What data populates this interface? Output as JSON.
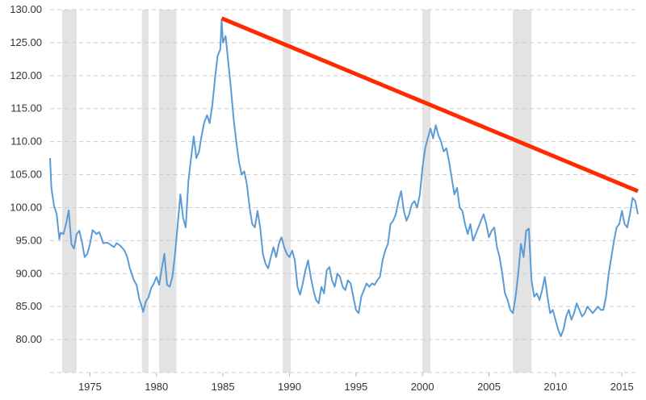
{
  "chart_data": {
    "type": "line",
    "title": "",
    "xlabel": "",
    "ylabel": "",
    "xlim": [
      1972.0,
      2016.2
    ],
    "ylim": [
      75,
      130
    ],
    "grid": {
      "horizontal": true,
      "vertical": false
    },
    "y_ticks": [
      {
        "value": 80,
        "label": "80.00"
      },
      {
        "value": 85,
        "label": "85.00"
      },
      {
        "value": 90,
        "label": "90.00"
      },
      {
        "value": 95,
        "label": "95.00"
      },
      {
        "value": 100,
        "label": "100.00"
      },
      {
        "value": 105,
        "label": "105.00"
      },
      {
        "value": 110,
        "label": "110.00"
      },
      {
        "value": 115,
        "label": "115.00"
      },
      {
        "value": 120,
        "label": "120.00"
      },
      {
        "value": 125,
        "label": "125.00"
      },
      {
        "value": 130,
        "label": "130.00"
      }
    ],
    "x_ticks": [
      {
        "value": 1975,
        "label": "1975"
      },
      {
        "value": 1980,
        "label": "1980"
      },
      {
        "value": 1985,
        "label": "1985"
      },
      {
        "value": 1990,
        "label": "1990"
      },
      {
        "value": 1995,
        "label": "1995"
      },
      {
        "value": 2000,
        "label": "2000"
      },
      {
        "value": 2005,
        "label": "2005"
      },
      {
        "value": 2010,
        "label": "2010"
      },
      {
        "value": 2015,
        "label": "2015"
      }
    ],
    "recession_bands": [
      {
        "start": 1972.9,
        "end": 1974.0
      },
      {
        "start": 1978.9,
        "end": 1979.4
      },
      {
        "start": 1980.2,
        "end": 1981.5
      },
      {
        "start": 1989.5,
        "end": 1990.1
      },
      {
        "start": 2000.0,
        "end": 2000.6
      },
      {
        "start": 2006.8,
        "end": 2008.2
      }
    ],
    "series": [
      {
        "color": "#5b9bd5",
        "points": [
          [
            1972.0,
            107.5
          ],
          [
            1972.1,
            103.0
          ],
          [
            1972.3,
            100.3
          ],
          [
            1972.5,
            99.0
          ],
          [
            1972.7,
            95.2
          ],
          [
            1972.8,
            96.2
          ],
          [
            1973.0,
            96.0
          ],
          [
            1973.2,
            97.5
          ],
          [
            1973.4,
            99.6
          ],
          [
            1973.6,
            94.5
          ],
          [
            1973.8,
            93.8
          ],
          [
            1974.0,
            96.0
          ],
          [
            1974.2,
            96.5
          ],
          [
            1974.4,
            94.8
          ],
          [
            1974.6,
            92.5
          ],
          [
            1974.8,
            93.0
          ],
          [
            1975.0,
            94.5
          ],
          [
            1975.2,
            96.6
          ],
          [
            1975.5,
            96.0
          ],
          [
            1975.7,
            96.3
          ],
          [
            1976.0,
            94.6
          ],
          [
            1976.3,
            94.7
          ],
          [
            1976.6,
            94.3
          ],
          [
            1976.8,
            94.0
          ],
          [
            1977.0,
            94.6
          ],
          [
            1977.3,
            94.2
          ],
          [
            1977.6,
            93.5
          ],
          [
            1977.8,
            92.5
          ],
          [
            1978.0,
            90.8
          ],
          [
            1978.3,
            89.0
          ],
          [
            1978.5,
            88.3
          ],
          [
            1978.7,
            86.2
          ],
          [
            1978.9,
            85.0
          ],
          [
            1979.0,
            84.2
          ],
          [
            1979.2,
            85.8
          ],
          [
            1979.4,
            86.4
          ],
          [
            1979.6,
            87.8
          ],
          [
            1979.8,
            88.5
          ],
          [
            1980.0,
            89.5
          ],
          [
            1980.2,
            88.3
          ],
          [
            1980.4,
            90.8
          ],
          [
            1980.6,
            93.0
          ],
          [
            1980.8,
            88.3
          ],
          [
            1981.0,
            88.0
          ],
          [
            1981.2,
            89.5
          ],
          [
            1981.4,
            93.0
          ],
          [
            1981.6,
            97.5
          ],
          [
            1981.8,
            102.0
          ],
          [
            1982.0,
            98.5
          ],
          [
            1982.2,
            97.0
          ],
          [
            1982.4,
            104.0
          ],
          [
            1982.6,
            107.5
          ],
          [
            1982.8,
            110.8
          ],
          [
            1983.0,
            107.5
          ],
          [
            1983.2,
            108.5
          ],
          [
            1983.4,
            111.0
          ],
          [
            1983.6,
            113.0
          ],
          [
            1983.8,
            114.0
          ],
          [
            1984.0,
            112.8
          ],
          [
            1984.2,
            115.5
          ],
          [
            1984.4,
            119.5
          ],
          [
            1984.6,
            123.0
          ],
          [
            1984.8,
            124.0
          ],
          [
            1984.9,
            128.5
          ],
          [
            1985.0,
            125.0
          ],
          [
            1985.2,
            126.0
          ],
          [
            1985.4,
            122.0
          ],
          [
            1985.6,
            118.0
          ],
          [
            1985.8,
            113.5
          ],
          [
            1986.0,
            110.0
          ],
          [
            1986.2,
            107.0
          ],
          [
            1986.4,
            105.0
          ],
          [
            1986.6,
            105.5
          ],
          [
            1986.8,
            103.5
          ],
          [
            1987.0,
            100.0
          ],
          [
            1987.2,
            97.5
          ],
          [
            1987.4,
            97.0
          ],
          [
            1987.6,
            99.5
          ],
          [
            1987.8,
            97.0
          ],
          [
            1988.0,
            93.0
          ],
          [
            1988.2,
            91.5
          ],
          [
            1988.4,
            90.8
          ],
          [
            1988.6,
            92.5
          ],
          [
            1988.8,
            94.0
          ],
          [
            1989.0,
            92.5
          ],
          [
            1989.2,
            94.5
          ],
          [
            1989.4,
            95.5
          ],
          [
            1989.6,
            94.0
          ],
          [
            1989.8,
            93.0
          ],
          [
            1990.0,
            92.5
          ],
          [
            1990.2,
            93.5
          ],
          [
            1990.4,
            92.0
          ],
          [
            1990.6,
            88.0
          ],
          [
            1990.8,
            86.8
          ],
          [
            1991.0,
            88.5
          ],
          [
            1991.2,
            90.5
          ],
          [
            1991.4,
            92.0
          ],
          [
            1991.6,
            89.5
          ],
          [
            1991.8,
            87.5
          ],
          [
            1992.0,
            86.0
          ],
          [
            1992.2,
            85.5
          ],
          [
            1992.4,
            88.0
          ],
          [
            1992.6,
            87.0
          ],
          [
            1992.8,
            90.5
          ],
          [
            1993.0,
            91.0
          ],
          [
            1993.2,
            89.0
          ],
          [
            1993.4,
            88.0
          ],
          [
            1993.6,
            90.0
          ],
          [
            1993.8,
            89.5
          ],
          [
            1994.0,
            88.0
          ],
          [
            1994.2,
            87.5
          ],
          [
            1994.4,
            89.0
          ],
          [
            1994.6,
            88.5
          ],
          [
            1994.8,
            86.5
          ],
          [
            1995.0,
            84.5
          ],
          [
            1995.2,
            84.0
          ],
          [
            1995.4,
            86.5
          ],
          [
            1995.6,
            87.5
          ],
          [
            1995.8,
            88.5
          ],
          [
            1996.0,
            88.0
          ],
          [
            1996.2,
            88.5
          ],
          [
            1996.4,
            88.3
          ],
          [
            1996.6,
            89.0
          ],
          [
            1996.8,
            89.5
          ],
          [
            1997.0,
            92.0
          ],
          [
            1997.2,
            93.5
          ],
          [
            1997.4,
            94.5
          ],
          [
            1997.6,
            97.5
          ],
          [
            1997.8,
            98.0
          ],
          [
            1998.0,
            99.0
          ],
          [
            1998.2,
            101.0
          ],
          [
            1998.4,
            102.5
          ],
          [
            1998.6,
            99.5
          ],
          [
            1998.8,
            98.0
          ],
          [
            1999.0,
            99.0
          ],
          [
            1999.2,
            100.5
          ],
          [
            1999.4,
            101.0
          ],
          [
            1999.6,
            100.0
          ],
          [
            1999.8,
            102.0
          ],
          [
            2000.0,
            106.0
          ],
          [
            2000.2,
            109.0
          ],
          [
            2000.4,
            110.5
          ],
          [
            2000.6,
            112.0
          ],
          [
            2000.8,
            110.5
          ],
          [
            2001.0,
            112.5
          ],
          [
            2001.2,
            111.0
          ],
          [
            2001.4,
            110.0
          ],
          [
            2001.6,
            108.5
          ],
          [
            2001.8,
            109.0
          ],
          [
            2002.0,
            107.0
          ],
          [
            2002.2,
            104.5
          ],
          [
            2002.4,
            102.0
          ],
          [
            2002.6,
            103.0
          ],
          [
            2002.8,
            100.0
          ],
          [
            2003.0,
            99.5
          ],
          [
            2003.2,
            97.5
          ],
          [
            2003.4,
            96.0
          ],
          [
            2003.6,
            97.5
          ],
          [
            2003.8,
            95.0
          ],
          [
            2004.0,
            96.0
          ],
          [
            2004.2,
            97.0
          ],
          [
            2004.4,
            98.0
          ],
          [
            2004.6,
            99.0
          ],
          [
            2004.8,
            97.5
          ],
          [
            2005.0,
            95.5
          ],
          [
            2005.2,
            96.5
          ],
          [
            2005.4,
            97.0
          ],
          [
            2005.6,
            94.0
          ],
          [
            2005.8,
            92.5
          ],
          [
            2006.0,
            90.0
          ],
          [
            2006.2,
            87.0
          ],
          [
            2006.4,
            86.0
          ],
          [
            2006.6,
            84.5
          ],
          [
            2006.8,
            84.0
          ],
          [
            2007.0,
            86.5
          ],
          [
            2007.2,
            90.0
          ],
          [
            2007.4,
            94.5
          ],
          [
            2007.6,
            92.5
          ],
          [
            2007.8,
            96.5
          ],
          [
            2008.0,
            96.8
          ],
          [
            2008.2,
            89.0
          ],
          [
            2008.4,
            86.5
          ],
          [
            2008.6,
            87.0
          ],
          [
            2008.8,
            86.0
          ],
          [
            2009.0,
            87.5
          ],
          [
            2009.2,
            89.5
          ],
          [
            2009.4,
            86.5
          ],
          [
            2009.6,
            84.0
          ],
          [
            2009.8,
            84.5
          ],
          [
            2010.0,
            83.0
          ],
          [
            2010.2,
            81.5
          ],
          [
            2010.4,
            80.5
          ],
          [
            2010.6,
            81.5
          ],
          [
            2010.8,
            83.5
          ],
          [
            2011.0,
            84.5
          ],
          [
            2011.2,
            83.0
          ],
          [
            2011.4,
            84.0
          ],
          [
            2011.6,
            85.5
          ],
          [
            2011.8,
            84.5
          ],
          [
            2012.0,
            83.5
          ],
          [
            2012.2,
            84.0
          ],
          [
            2012.4,
            85.0
          ],
          [
            2012.6,
            84.5
          ],
          [
            2012.8,
            84.0
          ],
          [
            2013.0,
            84.5
          ],
          [
            2013.2,
            85.0
          ],
          [
            2013.4,
            84.5
          ],
          [
            2013.6,
            84.5
          ],
          [
            2013.8,
            86.5
          ],
          [
            2014.0,
            90.0
          ],
          [
            2014.2,
            92.5
          ],
          [
            2014.4,
            95.0
          ],
          [
            2014.6,
            97.0
          ],
          [
            2014.8,
            97.5
          ],
          [
            2015.0,
            99.5
          ],
          [
            2015.2,
            97.5
          ],
          [
            2015.4,
            97.0
          ],
          [
            2015.6,
            99.0
          ],
          [
            2015.8,
            101.5
          ],
          [
            2016.0,
            101.0
          ],
          [
            2016.2,
            99.0
          ]
        ]
      }
    ],
    "annotations": [
      {
        "type": "trendline",
        "color": "#ff2a00",
        "from": [
          1984.9,
          128.7
        ],
        "to": [
          2016.2,
          102.5
        ]
      }
    ]
  }
}
